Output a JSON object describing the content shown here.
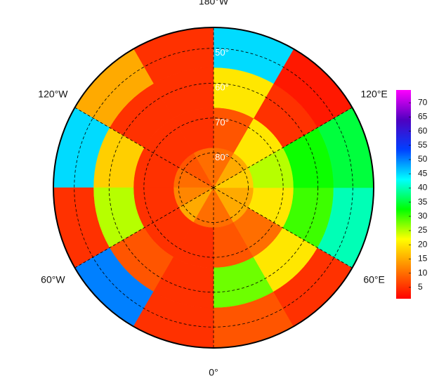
{
  "map": {
    "type": "polar-stereographic",
    "lat_lim": [
      44,
      90
    ],
    "lon_labels": [
      {
        "value": 180,
        "label": "180°W"
      },
      {
        "value": 120,
        "label": "120°E"
      },
      {
        "value": 60,
        "label": "60°E"
      },
      {
        "value": 0,
        "label": "0°"
      },
      {
        "value": -60,
        "label": "60°W"
      },
      {
        "value": -120,
        "label": "120°W"
      }
    ],
    "lat_labels": [
      {
        "value": 50,
        "label": "50°"
      },
      {
        "value": 60,
        "label": "60°"
      },
      {
        "value": 70,
        "label": "70°"
      },
      {
        "value": 80,
        "label": "80°"
      }
    ],
    "field": {
      "values": [
        [
          10,
          15,
          15,
          18,
          15,
          10,
          10,
          8,
          10,
          12,
          15,
          10
        ],
        [
          8,
          10,
          20,
          25,
          20,
          8,
          5,
          5,
          5,
          5,
          5,
          5
        ],
        [
          28,
          20,
          30,
          32,
          5,
          20,
          5,
          5,
          18,
          25,
          8,
          5
        ],
        [
          8,
          5,
          40,
          35,
          3,
          45,
          5,
          15,
          45,
          5,
          50,
          5
        ]
      ]
    },
    "colorbar": {
      "lim": [
        1,
        74.5
      ],
      "ticks": [
        5,
        10,
        15,
        20,
        25,
        30,
        35,
        40,
        45,
        50,
        55,
        60,
        65,
        70
      ],
      "colormap": [
        "#ff0000",
        "#ff8000",
        "#ffff00",
        "#00ff00",
        "#00ffff",
        "#0040ff",
        "#5000c0",
        "#ff00ff"
      ]
    }
  }
}
